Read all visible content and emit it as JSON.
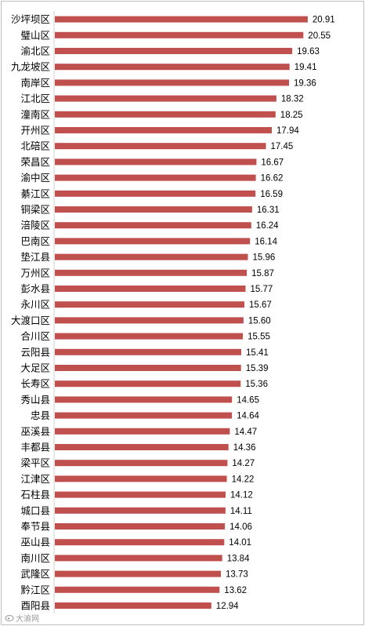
{
  "chart_data": {
    "type": "bar",
    "orientation": "horizontal",
    "title": "",
    "xlabel": "",
    "ylabel": "",
    "grid": false,
    "legend": "none",
    "bar_color": "#c0504d",
    "xlim": [
      0,
      21.5
    ],
    "categories": [
      "沙坪坝区",
      "璧山区",
      "渝北区",
      "九龙坡区",
      "南岸区",
      "江北区",
      "潼南区",
      "开州区",
      "北碚区",
      "荣昌区",
      "渝中区",
      "綦江区",
      "铜梁区",
      "涪陵区",
      "巴南区",
      "垫江县",
      "万州区",
      "彭水县",
      "永川区",
      "大渡口区",
      "合川区",
      "云阳县",
      "大足区",
      "长寿区",
      "秀山县",
      "忠县",
      "巫溪县",
      "丰都县",
      "梁平区",
      "江津区",
      "石柱县",
      "城口县",
      "奉节县",
      "巫山县",
      "南川区",
      "武隆区",
      "黔江区",
      "酉阳县"
    ],
    "values": [
      20.91,
      20.55,
      19.63,
      19.41,
      19.36,
      18.32,
      18.25,
      17.94,
      17.45,
      16.67,
      16.62,
      16.59,
      16.31,
      16.24,
      16.14,
      15.96,
      15.87,
      15.77,
      15.67,
      15.6,
      15.55,
      15.41,
      15.39,
      15.36,
      14.65,
      14.64,
      14.47,
      14.36,
      14.27,
      14.22,
      14.12,
      14.11,
      14.06,
      14.01,
      13.84,
      13.73,
      13.62,
      12.94
    ],
    "value_labels": [
      "20.91",
      "20.55",
      "19.63",
      "19.41",
      "19.36",
      "18.32",
      "18.25",
      "17.94",
      "17.45",
      "16.67",
      "16.62",
      "16.59",
      "16.31",
      "16.24",
      "16.14",
      "15.96",
      "15.87",
      "15.77",
      "15.67",
      "15.60",
      "15.55",
      "15.41",
      "15.39",
      "15.36",
      "14.65",
      "14.64",
      "14.47",
      "14.36",
      "14.27",
      "14.22",
      "14.12",
      "14.11",
      "14.06",
      "14.01",
      "13.84",
      "13.73",
      "13.62",
      "12.94"
    ]
  },
  "watermark": {
    "text": "大渝网",
    "icon": "weibo-icon"
  }
}
